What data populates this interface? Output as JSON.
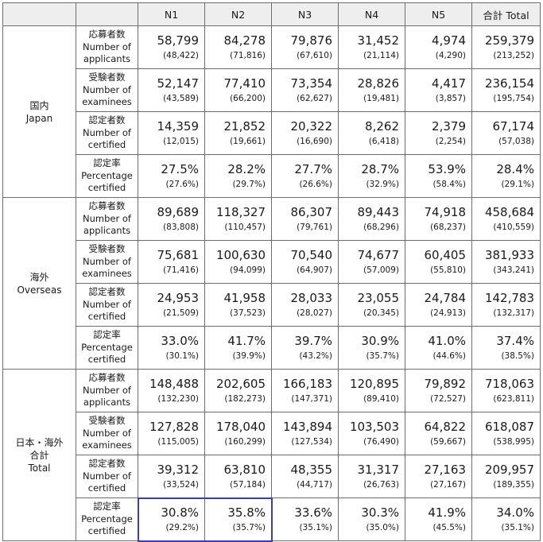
{
  "header": {
    "blank": "",
    "columns": [
      "N1",
      "N2",
      "N3",
      "N4",
      "N5",
      "合計 Total"
    ]
  },
  "sections": [
    {
      "region_jp": "国内",
      "region_en": "Japan",
      "region_total": "",
      "rows": [
        {
          "label_jp": "応募者数",
          "label_en": [
            "Number of",
            "applicants"
          ],
          "values": [
            "58,799",
            "84,278",
            "79,876",
            "31,452",
            "4,974",
            "259,379"
          ],
          "prev": [
            "(48,422)",
            "(71,816)",
            "(67,610)",
            "(21,114)",
            "(4,290)",
            "(213,252)"
          ]
        },
        {
          "label_jp": "受験者数",
          "label_en": [
            "Number of",
            "examinees"
          ],
          "values": [
            "52,147",
            "77,410",
            "73,354",
            "28,826",
            "4,417",
            "236,154"
          ],
          "prev": [
            "(43,589)",
            "(66,200)",
            "(62,627)",
            "(19,481)",
            "(3,857)",
            "(195,754)"
          ]
        },
        {
          "label_jp": "認定者数",
          "label_en": [
            "Number of",
            "certified"
          ],
          "values": [
            "14,359",
            "21,852",
            "20,322",
            "8,262",
            "2,379",
            "67,174"
          ],
          "prev": [
            "(12,015)",
            "(19,661)",
            "(16,690)",
            "(6,418)",
            "(2,254)",
            "(57,038)"
          ]
        },
        {
          "label_jp": "認定率",
          "label_en": [
            "Percentage",
            "certified"
          ],
          "values": [
            "27.5%",
            "28.2%",
            "27.7%",
            "28.7%",
            "53.9%",
            "28.4%"
          ],
          "prev": [
            "(27.6%)",
            "(29.7%)",
            "(26.6%)",
            "(32.9%)",
            "(58.4%)",
            "(29.1%)"
          ]
        }
      ]
    },
    {
      "region_jp": "海外",
      "region_en": "Overseas",
      "region_total": "",
      "rows": [
        {
          "label_jp": "応募者数",
          "label_en": [
            "Number of",
            "applicants"
          ],
          "values": [
            "89,689",
            "118,327",
            "86,307",
            "89,443",
            "74,918",
            "458,684"
          ],
          "prev": [
            "(83,808)",
            "(110,457)",
            "(79,761)",
            "(68,296)",
            "(68,237)",
            "(410,559)"
          ]
        },
        {
          "label_jp": "受験者数",
          "label_en": [
            "Number of",
            "examinees"
          ],
          "values": [
            "75,681",
            "100,630",
            "70,540",
            "74,677",
            "60,405",
            "381,933"
          ],
          "prev": [
            "(71,416)",
            "(94,099)",
            "(64,907)",
            "(57,009)",
            "(55,810)",
            "(343,241)"
          ]
        },
        {
          "label_jp": "認定者数",
          "label_en": [
            "Number of",
            "certified"
          ],
          "values": [
            "24,953",
            "41,958",
            "28,033",
            "23,055",
            "24,784",
            "142,783"
          ],
          "prev": [
            "(21,509)",
            "(37,523)",
            "(28,027)",
            "(20,345)",
            "(24,913)",
            "(132,317)"
          ]
        },
        {
          "label_jp": "認定率",
          "label_en": [
            "Percentage",
            "certified"
          ],
          "values": [
            "33.0%",
            "41.7%",
            "39.7%",
            "30.9%",
            "41.0%",
            "37.4%"
          ],
          "prev": [
            "(30.1%)",
            "(39.9%)",
            "(43.2%)",
            "(35.7%)",
            "(44.6%)",
            "(38.5%)"
          ]
        }
      ]
    },
    {
      "region_jp": "日本・海外",
      "region_en": "合計",
      "region_total": "Total",
      "rows": [
        {
          "label_jp": "応募者数",
          "label_en": [
            "Number of",
            "applicants"
          ],
          "values": [
            "148,488",
            "202,605",
            "166,183",
            "120,895",
            "79,892",
            "718,063"
          ],
          "prev": [
            "(132,230)",
            "(182,273)",
            "(147,371)",
            "(89,410)",
            "(72,527)",
            "(623,811)"
          ]
        },
        {
          "label_jp": "受験者数",
          "label_en": [
            "Number of",
            "examinees"
          ],
          "values": [
            "127,828",
            "178,040",
            "143,894",
            "103,503",
            "64,822",
            "618,087"
          ],
          "prev": [
            "(115,005)",
            "(160,299)",
            "(127,534)",
            "(76,490)",
            "(59,667)",
            "(538,995)"
          ]
        },
        {
          "label_jp": "認定者数",
          "label_en": [
            "Number of",
            "certified"
          ],
          "values": [
            "39,312",
            "63,810",
            "48,355",
            "31,317",
            "27,163",
            "209,957"
          ],
          "prev": [
            "(33,524)",
            "(57,184)",
            "(44,717)",
            "(26,763)",
            "(27,167)",
            "(189,355)"
          ]
        },
        {
          "label_jp": "認定率",
          "label_en": [
            "Percentage",
            "certified"
          ],
          "values": [
            "30.8%",
            "35.8%",
            "33.6%",
            "30.3%",
            "41.9%",
            "34.0%"
          ],
          "prev": [
            "(29.2%)",
            "(35.7%)",
            "(35.1%)",
            "(35.0%)",
            "(45.5%)",
            "(35.1%)"
          ]
        }
      ]
    }
  ],
  "highlight": {
    "color": "#3b3ea8",
    "covers": [
      "total N1 percentage certified",
      "total N2 percentage certified"
    ]
  }
}
